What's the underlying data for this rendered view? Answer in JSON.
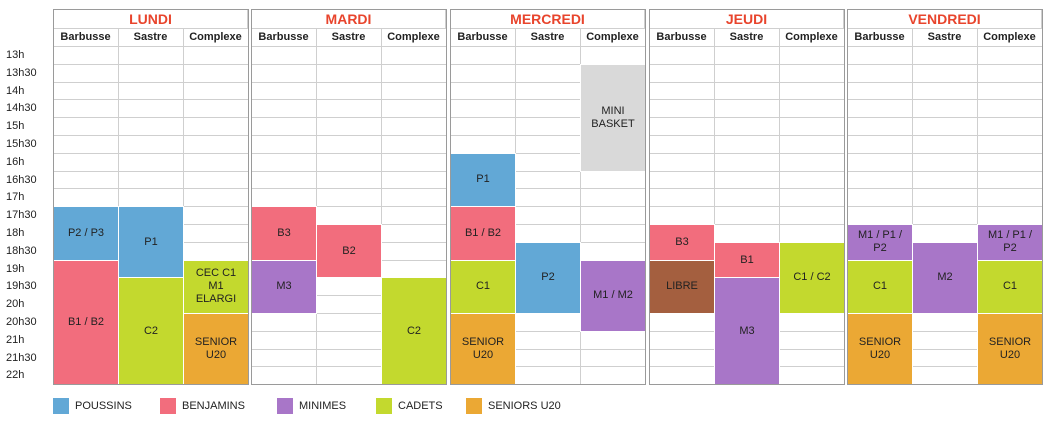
{
  "colors": {
    "poussins": "#62a8d6",
    "benjamins": "#f26d7d",
    "minimes": "#a876c8",
    "cadets": "#c3d92e",
    "seniors": "#eba834",
    "libre": "#a45f3f",
    "mini_basket": "#d9d9d9"
  },
  "times": [
    "13h",
    "13h30",
    "14h",
    "14h30",
    "15h",
    "15h30",
    "16h",
    "16h30",
    "17h",
    "17h30",
    "18h",
    "18h30",
    "19h",
    "19h30",
    "20h",
    "20h30",
    "21h",
    "21h30",
    "22h"
  ],
  "days": [
    {
      "name": "LUNDI",
      "venues": [
        "Barbusse",
        "Sastre",
        "Complexe"
      ]
    },
    {
      "name": "MARDI",
      "venues": [
        "Barbusse",
        "Sastre",
        "Complexe"
      ]
    },
    {
      "name": "MERCREDI",
      "venues": [
        "Barbusse",
        "Sastre",
        "Complexe"
      ]
    },
    {
      "name": "JEUDI",
      "venues": [
        "Barbusse",
        "Sastre",
        "Complexe"
      ]
    },
    {
      "name": "VENDREDI",
      "venues": [
        "Barbusse",
        "Sastre",
        "Complexe"
      ]
    }
  ],
  "sessions": [
    {
      "day": 0,
      "venue": 0,
      "start": "17h30",
      "end": "19h",
      "label": "P2 / P3",
      "category": "poussins"
    },
    {
      "day": 0,
      "venue": 0,
      "start": "19h",
      "end": "22h",
      "label": "B1 / B2",
      "category": "benjamins"
    },
    {
      "day": 0,
      "venue": 1,
      "start": "17h30",
      "end": "19h30",
      "label": "P1",
      "category": "poussins"
    },
    {
      "day": 0,
      "venue": 1,
      "start": "19h30",
      "end": "22h",
      "label": "C2",
      "category": "cadets"
    },
    {
      "day": 0,
      "venue": 2,
      "start": "19h",
      "end": "20h30",
      "label": "CEC C1 M1 ELARGI",
      "category": "cadets"
    },
    {
      "day": 0,
      "venue": 2,
      "start": "20h30",
      "end": "22h",
      "label": "SENIOR U20",
      "category": "seniors"
    },
    {
      "day": 1,
      "venue": 0,
      "start": "17h30",
      "end": "19h",
      "label": "B3",
      "category": "benjamins"
    },
    {
      "day": 1,
      "venue": 0,
      "start": "19h",
      "end": "20h30",
      "label": "M3",
      "category": "minimes"
    },
    {
      "day": 1,
      "venue": 1,
      "start": "18h",
      "end": "19h30",
      "label": "B2",
      "category": "benjamins"
    },
    {
      "day": 1,
      "venue": 2,
      "start": "19h30",
      "end": "22h",
      "label": "C2",
      "category": "cadets"
    },
    {
      "day": 2,
      "venue": 0,
      "start": "16h",
      "end": "17h30",
      "label": "P1",
      "category": "poussins"
    },
    {
      "day": 2,
      "venue": 0,
      "start": "17h30",
      "end": "19h",
      "label": "B1 / B2",
      "category": "benjamins"
    },
    {
      "day": 2,
      "venue": 0,
      "start": "19h",
      "end": "20h30",
      "label": "C1",
      "category": "cadets"
    },
    {
      "day": 2,
      "venue": 0,
      "start": "20h30",
      "end": "22h",
      "label": "SENIOR U20",
      "category": "seniors"
    },
    {
      "day": 2,
      "venue": 1,
      "start": "18h30",
      "end": "20h30",
      "label": "P2",
      "category": "poussins"
    },
    {
      "day": 2,
      "venue": 2,
      "start": "13h30",
      "end": "16h30",
      "label": "MINI BASKET",
      "category": "mini_basket"
    },
    {
      "day": 2,
      "venue": 2,
      "start": "19h",
      "end": "21h",
      "label": "M1 / M2",
      "category": "minimes"
    },
    {
      "day": 3,
      "venue": 0,
      "start": "18h",
      "end": "19h",
      "label": "B3",
      "category": "benjamins"
    },
    {
      "day": 3,
      "venue": 0,
      "start": "19h",
      "end": "20h30",
      "label": "LIBRE",
      "category": "libre"
    },
    {
      "day": 3,
      "venue": 1,
      "start": "18h30",
      "end": "19h30",
      "label": "B1",
      "category": "benjamins"
    },
    {
      "day": 3,
      "venue": 1,
      "start": "19h30",
      "end": "22h",
      "label": "M3",
      "category": "minimes"
    },
    {
      "day": 3,
      "venue": 2,
      "start": "18h30",
      "end": "20h30",
      "label": "C1 / C2",
      "category": "cadets"
    },
    {
      "day": 4,
      "venue": 0,
      "start": "18h",
      "end": "19h",
      "label": "M1 / P1 / P2",
      "category": "minimes"
    },
    {
      "day": 4,
      "venue": 0,
      "start": "19h",
      "end": "20h30",
      "label": "C1",
      "category": "cadets"
    },
    {
      "day": 4,
      "venue": 0,
      "start": "20h30",
      "end": "22h",
      "label": "SENIOR U20",
      "category": "seniors"
    },
    {
      "day": 4,
      "venue": 1,
      "start": "18h30",
      "end": "20h30",
      "label": "M2",
      "category": "minimes"
    },
    {
      "day": 4,
      "venue": 2,
      "start": "18h",
      "end": "19h",
      "label": "M1 / P1 / P2",
      "category": "minimes"
    },
    {
      "day": 4,
      "venue": 2,
      "start": "19h",
      "end": "20h30",
      "label": "C1",
      "category": "cadets"
    },
    {
      "day": 4,
      "venue": 2,
      "start": "20h30",
      "end": "22h",
      "label": "SENIOR U20",
      "category": "seniors"
    }
  ],
  "legend": [
    {
      "label": "POUSSINS",
      "category": "poussins"
    },
    {
      "label": "BENJAMINS",
      "category": "benjamins"
    },
    {
      "label": "MINIMES",
      "category": "minimes"
    },
    {
      "label": "CADETS",
      "category": "cadets"
    },
    {
      "label": "SENIORS U20",
      "category": "seniors"
    }
  ]
}
